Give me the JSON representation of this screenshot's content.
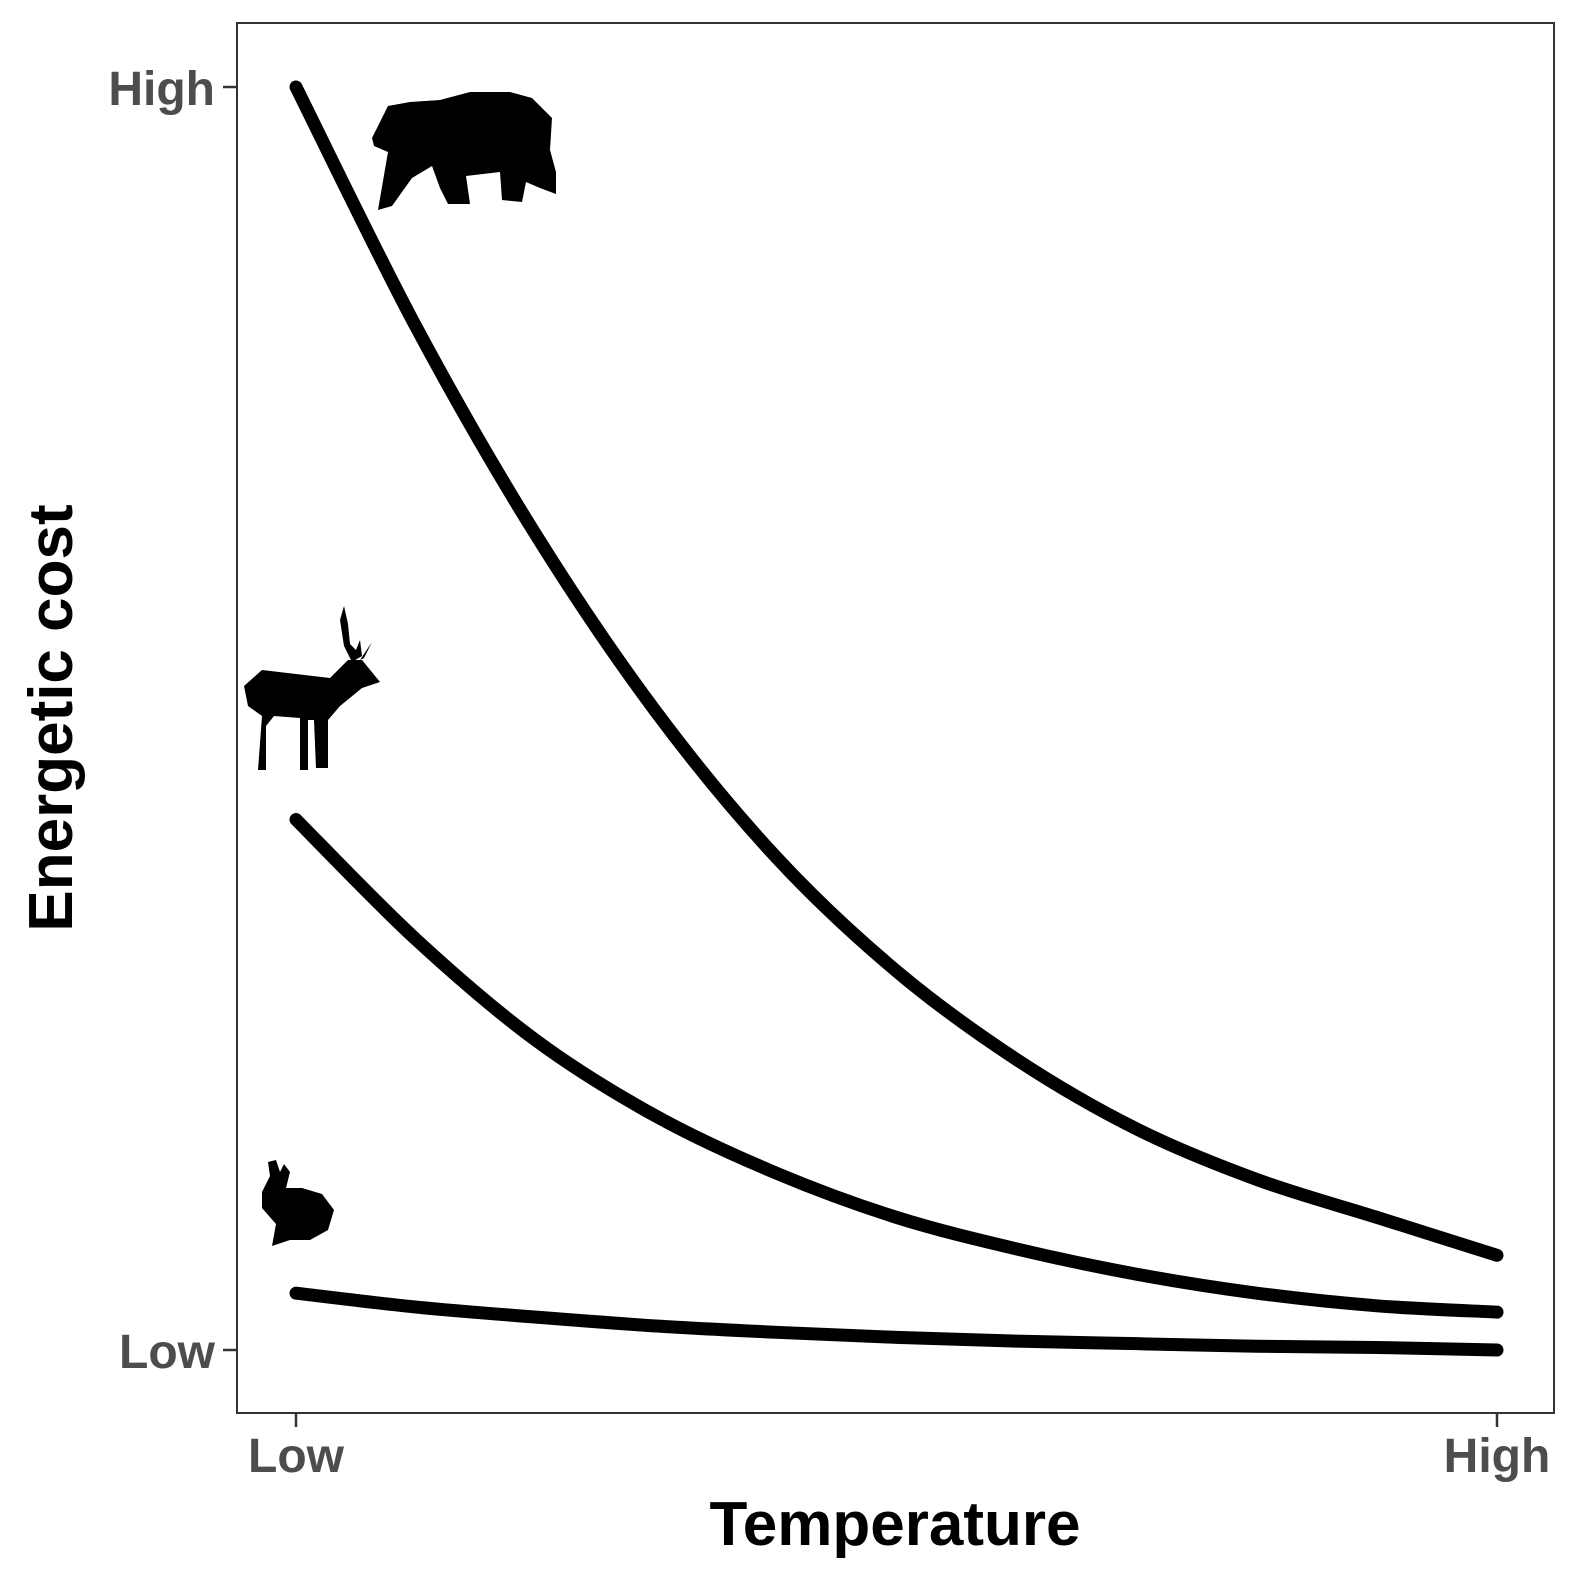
{
  "chart_data": {
    "type": "line",
    "xlabel": "Temperature",
    "ylabel": "Energetic cost",
    "x_ticks": [
      "Low",
      "High"
    ],
    "y_ticks": [
      "Low",
      "High"
    ],
    "xlim": [
      0,
      1
    ],
    "ylim": [
      0,
      1
    ],
    "grid": false,
    "legend": "none",
    "line_color": "#000000",
    "series": [
      {
        "icon": "bear-icon",
        "x": [
          0,
          0.1,
          0.2,
          0.3,
          0.4,
          0.5,
          0.6,
          0.7,
          0.8,
          0.9,
          1.0
        ],
        "y": [
          1.0,
          0.81,
          0.645,
          0.505,
          0.39,
          0.3,
          0.23,
          0.175,
          0.135,
          0.105,
          0.075
        ]
      },
      {
        "icon": "deer-icon",
        "x": [
          0,
          0.1,
          0.2,
          0.3,
          0.4,
          0.5,
          0.6,
          0.7,
          0.8,
          0.9,
          1.0
        ],
        "y": [
          0.42,
          0.325,
          0.245,
          0.185,
          0.14,
          0.105,
          0.08,
          0.06,
          0.045,
          0.035,
          0.03
        ]
      },
      {
        "icon": "rabbit-icon",
        "x": [
          0,
          0.1,
          0.2,
          0.3,
          0.4,
          0.5,
          0.6,
          0.7,
          0.8,
          0.9,
          1.0
        ],
        "y": [
          0.045,
          0.034,
          0.026,
          0.019,
          0.014,
          0.01,
          0.007,
          0.005,
          0.003,
          0.002,
          0.0
        ]
      }
    ]
  }
}
